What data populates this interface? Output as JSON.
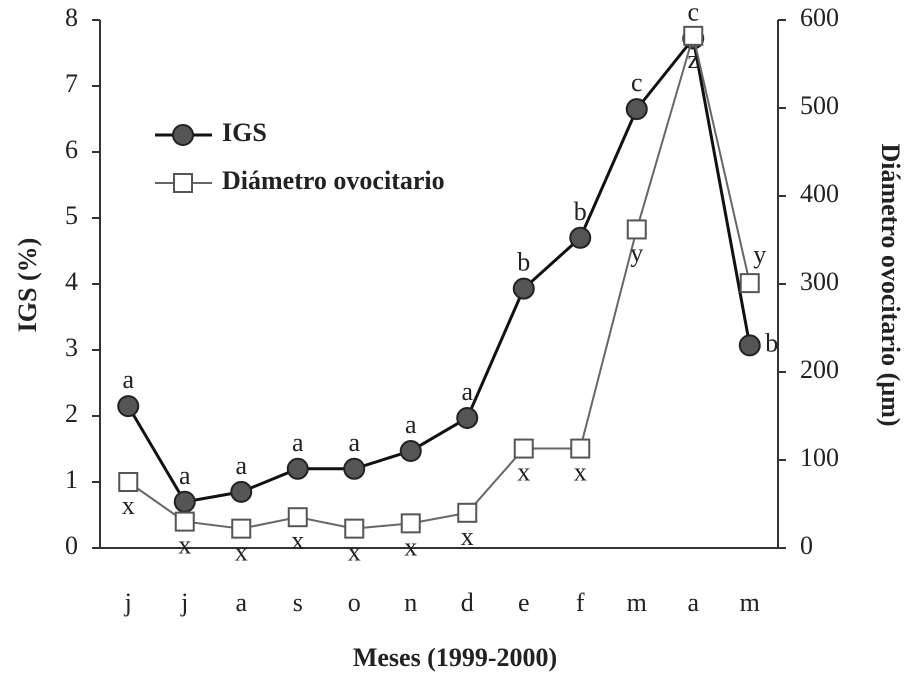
{
  "chart_data": {
    "type": "line",
    "x_label": "Meses (1999-2000)",
    "y_label": "IGS (%)",
    "y2_label": "Diámetro ovocitario (µm)",
    "categories": [
      "j",
      "j",
      "a",
      "s",
      "o",
      "n",
      "d",
      "e",
      "f",
      "m",
      "a",
      "m"
    ],
    "ylim": [
      0,
      8
    ],
    "yticks": [
      0,
      1,
      2,
      3,
      4,
      5,
      6,
      7,
      8
    ],
    "y2lim": [
      0,
      600
    ],
    "y2ticks": [
      0,
      100,
      200,
      300,
      400,
      500,
      600
    ],
    "legend": "upper left",
    "series": [
      {
        "name": "IGS",
        "color": "#555555",
        "marker": "circle",
        "values": [
          2.15,
          0.7,
          0.85,
          1.2,
          1.2,
          1.47,
          1.97,
          3.93,
          4.7,
          6.65,
          7.72,
          3.07
        ],
        "point_labels": [
          "a",
          "a",
          "a",
          "a",
          "a",
          "a",
          "a",
          "b",
          "b",
          "c",
          "c",
          "b"
        ]
      },
      {
        "name": "Diámetro ovocitario",
        "color": "#ffffff",
        "marker": "square",
        "axis": "y2",
        "values": [
          75,
          30,
          22,
          35,
          22,
          28,
          40,
          113,
          113,
          362,
          582,
          301
        ],
        "point_labels": [
          "x",
          "x",
          "x",
          "x",
          "x",
          "x",
          "x",
          "x",
          "x",
          "y",
          "z",
          "y"
        ]
      }
    ]
  }
}
